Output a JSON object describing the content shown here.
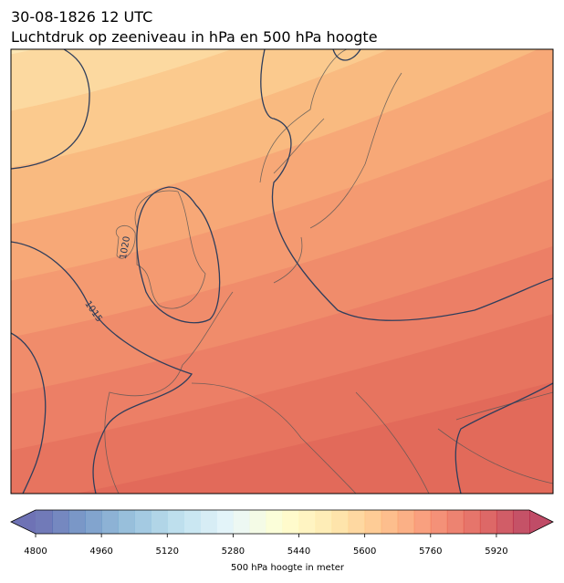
{
  "header": {
    "date": "30-08-1826 12 UTC",
    "title": "Luchtdruk op zeeniveau in hPa en 500 hPa hoogte"
  },
  "map": {
    "contour_labels": [
      "1020",
      "1015"
    ]
  },
  "colorbar": {
    "range": [
      4800,
      6000
    ],
    "step": 40,
    "ticks": [
      4800,
      4960,
      5120,
      5280,
      5440,
      5600,
      5760,
      5920
    ],
    "label": "500 hPa hoogte in meter"
  }
}
